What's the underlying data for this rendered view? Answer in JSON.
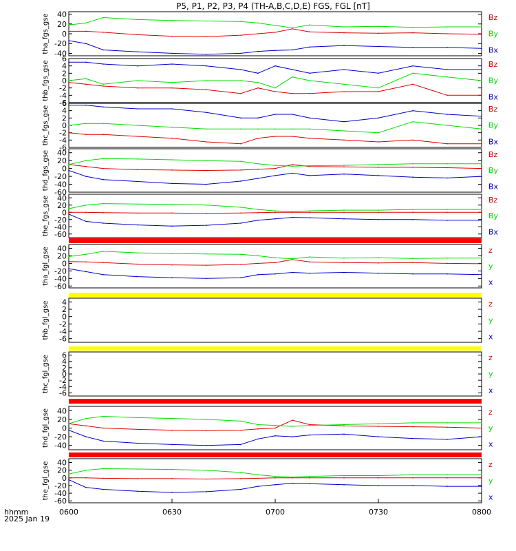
{
  "title": "P5, P1, P2, P3, P4 (TH-A,B,C,D,E) FGS, FGL [nT]",
  "time_axis": {
    "ticks": [
      "0600",
      "0630",
      "0700",
      "0730",
      "0800"
    ],
    "label_line1": "hhmm",
    "label_line2": "2025 Jan 19"
  },
  "colors": {
    "z": "#dd0000",
    "y": "#00dd00",
    "x": "#0000cc",
    "red_bar": "#ff0000",
    "yellow_bar": "#ffff00",
    "black": "#000000"
  },
  "chart_data": [
    {
      "type": "line",
      "ylabel": "tha_fgs_gse",
      "ylim": [
        -45,
        45
      ],
      "yticks": [
        -40,
        -20,
        0,
        20,
        40
      ],
      "legend": [
        "Bz",
        "By",
        "Bx"
      ],
      "x": [
        "0600",
        "0605",
        "0610",
        "0620",
        "0630",
        "0640",
        "0650",
        "0655",
        "0700",
        "0705",
        "0710",
        "0720",
        "0730",
        "0740",
        "0750",
        "0800"
      ],
      "series": [
        {
          "name": "Bz",
          "color": "red",
          "values": [
            5,
            5,
            3,
            -2,
            -5,
            -6,
            -3,
            0,
            3,
            10,
            4,
            2,
            1,
            2,
            0,
            -1
          ]
        },
        {
          "name": "By",
          "color": "green",
          "values": [
            18,
            22,
            33,
            29,
            27,
            26,
            25,
            22,
            17,
            12,
            18,
            14,
            15,
            13,
            14,
            14
          ]
        },
        {
          "name": "Bx",
          "color": "blue",
          "values": [
            -14,
            -20,
            -33,
            -37,
            -40,
            -42,
            -40,
            -36,
            -34,
            -33,
            -27,
            -24,
            -26,
            -28,
            -28,
            -30
          ]
        }
      ]
    },
    {
      "type": "line",
      "ylabel": "thb_fgs_gse",
      "ylim": [
        -6,
        6
      ],
      "yticks": [
        -6,
        -4,
        -2,
        0,
        2,
        4,
        6
      ],
      "legend": [
        "Bz",
        "By",
        "Bx"
      ],
      "x": [
        "0600",
        "0605",
        "0610",
        "0620",
        "0630",
        "0640",
        "0650",
        "0655",
        "0700",
        "0705",
        "0710",
        "0720",
        "0730",
        "0740",
        "0750",
        "0800"
      ],
      "series": [
        {
          "name": "Bz",
          "color": "red",
          "values": [
            -0.5,
            -1,
            -1.5,
            -2,
            -2,
            -2.5,
            -3.5,
            -2,
            -3,
            -3.5,
            -3.5,
            -3,
            -3,
            -1,
            -4,
            -4
          ]
        },
        {
          "name": "By",
          "color": "green",
          "values": [
            0,
            0.5,
            -1,
            0,
            -0.5,
            0,
            0,
            -0.5,
            -2,
            1,
            0,
            -1,
            -2,
            2,
            1,
            0
          ]
        },
        {
          "name": "Bx",
          "color": "blue",
          "values": [
            5,
            5,
            4.5,
            4,
            4.5,
            4,
            3,
            2,
            4,
            3,
            2,
            3,
            2,
            4,
            3,
            3
          ]
        }
      ]
    },
    {
      "type": "line",
      "ylabel": "thc_fgs_gse",
      "ylim": [
        -6,
        6
      ],
      "yticks": [
        -6,
        -4,
        -2,
        0,
        2,
        4,
        6
      ],
      "legend": [
        "Bz",
        "By",
        "Bx"
      ],
      "x": [
        "0600",
        "0605",
        "0610",
        "0620",
        "0630",
        "0640",
        "0650",
        "0655",
        "0700",
        "0705",
        "0710",
        "0720",
        "0730",
        "0740",
        "0750",
        "0800"
      ],
      "series": [
        {
          "name": "Bz",
          "color": "red",
          "values": [
            -2,
            -2.5,
            -2.5,
            -3,
            -3.5,
            -4.5,
            -5,
            -3.5,
            -3,
            -3,
            -3.5,
            -4,
            -4.5,
            -4,
            -5,
            -5
          ]
        },
        {
          "name": "By",
          "color": "green",
          "values": [
            0,
            0.5,
            0.5,
            0,
            -0.5,
            -1,
            -1,
            -1,
            -1,
            -1,
            -1,
            -1.5,
            -2,
            1,
            0,
            -1
          ]
        },
        {
          "name": "Bx",
          "color": "blue",
          "values": [
            5.5,
            5.5,
            5,
            4.5,
            4.5,
            3.5,
            2,
            2,
            3,
            3,
            2,
            1,
            2,
            4,
            3,
            2.5
          ]
        }
      ]
    },
    {
      "type": "line",
      "ylabel": "thd_fgs_gse",
      "ylim": [
        -60,
        50
      ],
      "yticks": [
        -60,
        -40,
        -20,
        0,
        20,
        40
      ],
      "legend": [
        "Bz",
        "By",
        "Bx"
      ],
      "x": [
        "0600",
        "0605",
        "0610",
        "0620",
        "0630",
        "0640",
        "0650",
        "0655",
        "0700",
        "0705",
        "0710",
        "0720",
        "0730",
        "0740",
        "0750",
        "0800"
      ],
      "series": [
        {
          "name": "Bz",
          "color": "red",
          "values": [
            10,
            5,
            0,
            -3,
            -4,
            -5,
            -4,
            -2,
            0,
            10,
            5,
            4,
            3,
            3,
            2,
            0
          ]
        },
        {
          "name": "By",
          "color": "green",
          "values": [
            10,
            20,
            25,
            24,
            22,
            20,
            18,
            12,
            8,
            6,
            7,
            8,
            10,
            12,
            12,
            12
          ]
        },
        {
          "name": "Bx",
          "color": "blue",
          "values": [
            -5,
            -20,
            -28,
            -33,
            -38,
            -40,
            -32,
            -25,
            -18,
            -12,
            -18,
            -14,
            -18,
            -22,
            -24,
            -20
          ]
        }
      ]
    },
    {
      "type": "line",
      "ylabel": "the_fgs_gse",
      "ylim": [
        -70,
        50
      ],
      "yticks": [
        -60,
        -40,
        -20,
        0,
        20,
        40
      ],
      "legend": [
        "Bz",
        "By",
        "Bx"
      ],
      "x": [
        "0600",
        "0605",
        "0610",
        "0620",
        "0630",
        "0640",
        "0650",
        "0655",
        "0700",
        "0705",
        "0710",
        "0720",
        "0730",
        "0740",
        "0750",
        "0800"
      ],
      "series": [
        {
          "name": "Bz",
          "color": "red",
          "values": [
            0,
            0,
            -1,
            -2,
            -2,
            -3,
            -2,
            -1,
            0,
            0,
            0,
            0,
            0,
            0,
            0,
            0
          ]
        },
        {
          "name": "By",
          "color": "green",
          "values": [
            10,
            20,
            24,
            23,
            22,
            20,
            14,
            8,
            4,
            2,
            4,
            6,
            6,
            8,
            8,
            8
          ]
        },
        {
          "name": "Bx",
          "color": "blue",
          "values": [
            -5,
            -25,
            -30,
            -35,
            -38,
            -36,
            -30,
            -22,
            -18,
            -14,
            -15,
            -18,
            -20,
            -20,
            -22,
            -22
          ]
        }
      ]
    },
    {
      "type": "line",
      "ylabel": "tha_fgl_gse",
      "ylim": [
        -65,
        50
      ],
      "yticks": [
        -60,
        -40,
        -20,
        0,
        20,
        40
      ],
      "legend": [
        "z",
        "y",
        "x"
      ],
      "x": [
        "0600",
        "0605",
        "0610",
        "0620",
        "0630",
        "0640",
        "0650",
        "0655",
        "0700",
        "0705",
        "0710",
        "0720",
        "0730",
        "0740",
        "0750",
        "0800"
      ],
      "series": [
        {
          "name": "z",
          "color": "red",
          "values": [
            5,
            4,
            2,
            -2,
            -4,
            -5,
            -3,
            0,
            2,
            10,
            4,
            2,
            1,
            2,
            0,
            -1
          ]
        },
        {
          "name": "y",
          "color": "green",
          "values": [
            18,
            24,
            32,
            28,
            26,
            25,
            24,
            20,
            15,
            12,
            17,
            14,
            15,
            13,
            14,
            14
          ]
        },
        {
          "name": "x",
          "color": "blue",
          "values": [
            -14,
            -22,
            -30,
            -35,
            -38,
            -40,
            -38,
            -30,
            -28,
            -24,
            -26,
            -24,
            -26,
            -28,
            -28,
            -30
          ]
        }
      ]
    },
    {
      "type": "line",
      "ylabel": "thb_fgl_gse",
      "ylim": [
        -7,
        5
      ],
      "yticks": [
        -6,
        -4,
        -2,
        0,
        2,
        4
      ],
      "legend": [
        "z",
        "y",
        "x"
      ],
      "x": [],
      "series": []
    },
    {
      "type": "line",
      "ylabel": "thc_fgl_gse",
      "ylim": [
        -7,
        7
      ],
      "yticks": [
        -6,
        -4,
        -2,
        0,
        2,
        4,
        6
      ],
      "legend": [
        "z",
        "y",
        "x"
      ],
      "x": [],
      "series": []
    },
    {
      "type": "line",
      "ylabel": "thd_fgl_gse",
      "ylim": [
        -50,
        50
      ],
      "yticks": [
        -40,
        -20,
        0,
        20,
        40
      ],
      "legend": [
        "z",
        "y",
        "x"
      ],
      "x": [
        "0600",
        "0605",
        "0610",
        "0620",
        "0630",
        "0640",
        "0650",
        "0655",
        "0700",
        "0705",
        "0710",
        "0720",
        "0730",
        "0740",
        "0750",
        "0800"
      ],
      "series": [
        {
          "name": "z",
          "color": "red",
          "values": [
            10,
            5,
            0,
            -3,
            -5,
            -6,
            -5,
            -2,
            0,
            18,
            8,
            5,
            4,
            3,
            2,
            0
          ]
        },
        {
          "name": "y",
          "color": "green",
          "values": [
            10,
            22,
            27,
            24,
            22,
            20,
            16,
            8,
            6,
            4,
            6,
            8,
            10,
            12,
            12,
            12
          ]
        },
        {
          "name": "x",
          "color": "blue",
          "values": [
            -5,
            -20,
            -30,
            -35,
            -38,
            -40,
            -38,
            -25,
            -18,
            -20,
            -16,
            -14,
            -20,
            -24,
            -26,
            -20
          ]
        }
      ]
    },
    {
      "type": "line",
      "ylabel": "the_fgl_gse",
      "ylim": [
        -65,
        50
      ],
      "yticks": [
        -60,
        -40,
        -20,
        0,
        20,
        40
      ],
      "legend": [
        "z",
        "y",
        "x"
      ],
      "x": [
        "0600",
        "0605",
        "0610",
        "0620",
        "0630",
        "0640",
        "0650",
        "0655",
        "0700",
        "0705",
        "0710",
        "0720",
        "0730",
        "0740",
        "0750",
        "0800"
      ],
      "series": [
        {
          "name": "z",
          "color": "red",
          "values": [
            0,
            0,
            -1,
            -2,
            -2,
            -3,
            -2,
            -1,
            0,
            0,
            0,
            0,
            0,
            0,
            0,
            0
          ]
        },
        {
          "name": "y",
          "color": "green",
          "values": [
            10,
            20,
            24,
            23,
            22,
            20,
            14,
            8,
            4,
            2,
            4,
            6,
            6,
            8,
            8,
            8
          ]
        },
        {
          "name": "x",
          "color": "blue",
          "values": [
            -5,
            -25,
            -30,
            -35,
            -38,
            -36,
            -30,
            -22,
            -18,
            -14,
            -15,
            -18,
            -20,
            -20,
            -22,
            -22
          ]
        }
      ]
    }
  ],
  "status_bars": [
    "red",
    "yellow",
    "yellow",
    "red",
    "red"
  ]
}
